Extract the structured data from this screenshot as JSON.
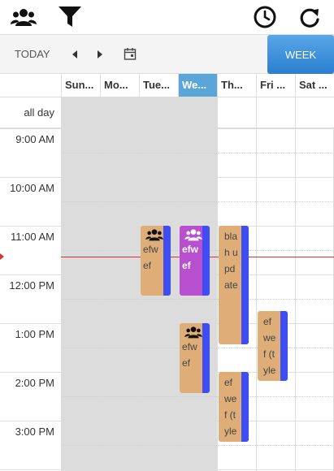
{
  "topbar": {
    "left_icons": [
      "group-icon",
      "filter-icon"
    ],
    "right_icons": [
      "clock-icon",
      "refresh-icon"
    ]
  },
  "toolbar": {
    "today_label": "TODAY",
    "view_label": "WEEK"
  },
  "days": [
    "Sun...",
    "Mo...",
    "Tue...",
    "We...",
    "Th...",
    "Fri ...",
    "Sat ..."
  ],
  "active_day_index": 3,
  "all_day_label": "all day",
  "times": [
    "9:00 AM",
    "10:00 AM",
    "11:00 AM",
    "12:00 PM",
    "1:00 PM",
    "2:00 PM",
    "3:00 PM"
  ],
  "events": [
    {
      "text": "efw ef",
      "icon": "group-icon"
    },
    {
      "text": "efw ef",
      "icon": "group-icon"
    },
    {
      "text": "efw ef",
      "icon": "group-icon"
    },
    {
      "text": "blah update",
      "icon": ""
    },
    {
      "text": "ef wef (tyler)",
      "icon": ""
    },
    {
      "text": "ef wef (tyler) ()",
      "icon": ""
    }
  ],
  "colors": {
    "event_bg": "#dfae78",
    "event_active_bg": "#b84fcf",
    "stripe": "#3f4ef2",
    "accent": "#2a7fd0",
    "now_line": "#e03030",
    "shade": "#dcdcdc"
  }
}
